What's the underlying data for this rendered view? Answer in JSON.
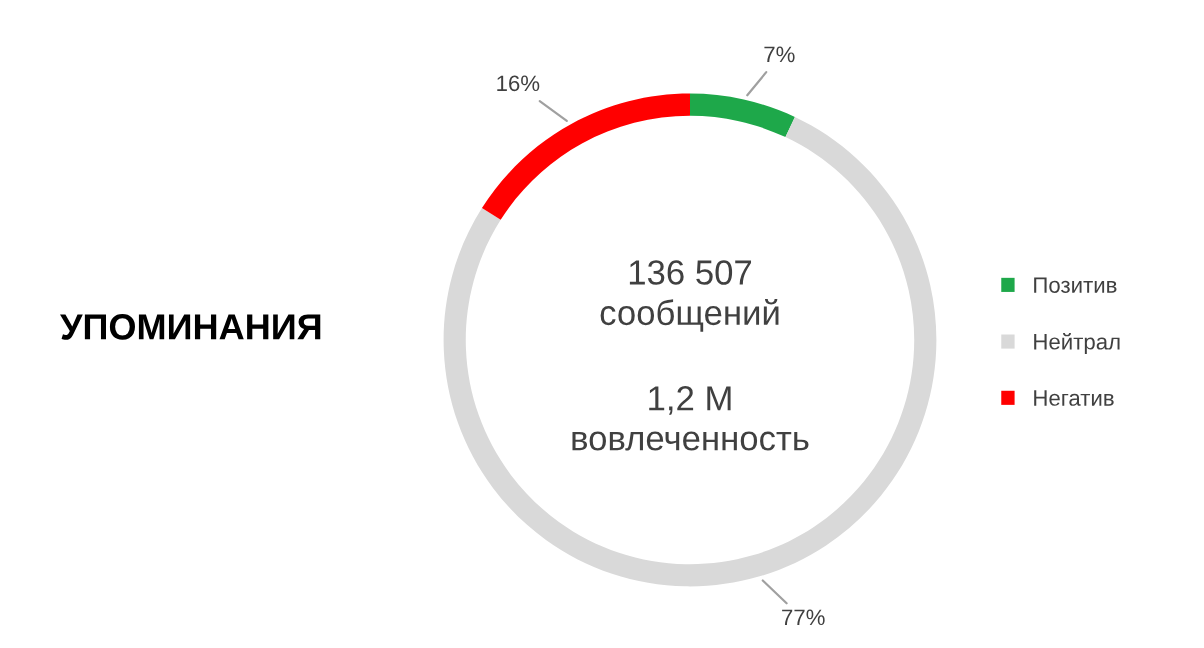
{
  "chart_data": {
    "type": "donut",
    "title": "УПОМИНАНИЯ",
    "categories": [
      "Позитив",
      "Нейтрал",
      "Негатив"
    ],
    "values": [
      7,
      77,
      16
    ],
    "colors": [
      "#1ea84a",
      "#d9d9d9",
      "#ff0000"
    ],
    "value_labels": [
      "7%",
      "77%",
      "16%"
    ],
    "annotations": [
      "136 507\nсообщений",
      "1,2 М\nвовлеченность"
    ],
    "legend": "right"
  }
}
